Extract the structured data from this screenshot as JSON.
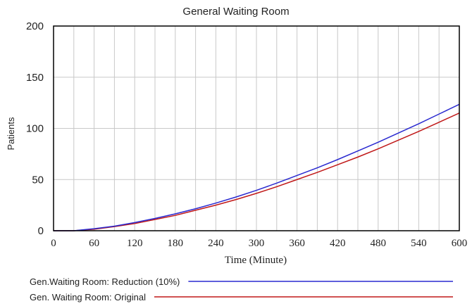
{
  "chart_data": {
    "type": "line",
    "title": "General Waiting Room",
    "xlabel": "Time (Minute)",
    "ylabel": "Patients",
    "xlim": [
      0,
      600
    ],
    "ylim": [
      0,
      200
    ],
    "x_ticks": [
      "0",
      "60",
      "120",
      "180",
      "240",
      "300",
      "360",
      "420",
      "480",
      "540",
      "600"
    ],
    "y_ticks": [
      "0",
      "50",
      "100",
      "150",
      "200"
    ],
    "x_grid_step": 30,
    "grid": true,
    "legend_position": "bottom",
    "x": [
      0,
      30,
      60,
      90,
      120,
      150,
      180,
      210,
      240,
      270,
      300,
      330,
      360,
      390,
      420,
      450,
      480,
      510,
      540,
      570,
      600
    ],
    "series": [
      {
        "name": "Gen.Waiting Room: Reduction (10%)",
        "color": "#2a2ad0",
        "values": [
          0,
          0,
          2,
          4.5,
          8,
          12,
          16.5,
          21.5,
          27,
          33,
          39.5,
          46.5,
          54,
          61.5,
          69.5,
          78,
          86.5,
          95.5,
          104.5,
          114,
          123.5
        ]
      },
      {
        "name": "Gen. Waiting Room: Original",
        "color": "#c01818",
        "values": [
          0,
          0,
          1.5,
          4,
          7,
          11,
          15,
          20,
          25,
          30.5,
          36.5,
          43,
          50,
          57,
          64.5,
          72,
          80,
          88.5,
          97,
          106,
          115
        ]
      }
    ]
  }
}
